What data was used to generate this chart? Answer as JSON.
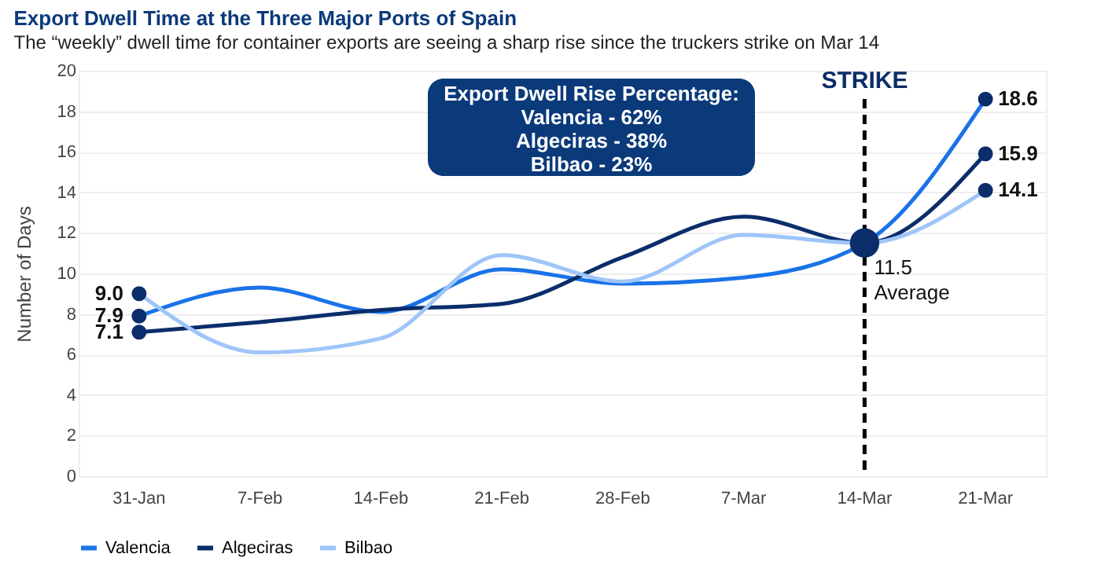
{
  "chart_data": {
    "type": "line",
    "title": "Export Dwell Time at the Three Major Ports of Spain",
    "subtitle": "The “weekly” dwell time for container exports are seeing a sharp rise since the truckers strike on Mar 14",
    "ylabel": "Number of Days",
    "categories": [
      "31-Jan",
      "7-Feb",
      "14-Feb",
      "21-Feb",
      "28-Feb",
      "7-Mar",
      "14-Mar",
      "21-Mar"
    ],
    "series": [
      {
        "name": "Valencia",
        "color": "#1a73e8",
        "values": [
          7.9,
          9.3,
          8.1,
          10.2,
          9.5,
          9.8,
          11.5,
          18.6
        ],
        "value_labels": [
          "7.9",
          null,
          null,
          null,
          null,
          null,
          null,
          "18.6"
        ]
      },
      {
        "name": "Algeciras",
        "color": "#0b2d6b",
        "values": [
          7.1,
          7.6,
          8.2,
          8.5,
          10.8,
          12.8,
          11.5,
          15.9
        ],
        "value_labels": [
          "7.1",
          null,
          null,
          null,
          null,
          null,
          null,
          "15.9"
        ]
      },
      {
        "name": "Bilbao",
        "color": "#9fc5f8",
        "values": [
          9.0,
          6.1,
          6.8,
          10.9,
          9.6,
          11.9,
          11.5,
          14.1
        ],
        "value_labels": [
          "9.0",
          null,
          null,
          null,
          null,
          null,
          null,
          "14.1"
        ]
      }
    ],
    "ylim": [
      0,
      20
    ],
    "yticks": [
      0,
      2,
      4,
      6,
      8,
      10,
      12,
      14,
      16,
      18,
      20
    ],
    "grid": "y",
    "legend": "bottom left",
    "line_style": "solid",
    "ref_lines": [
      {
        "axis": "x",
        "value": "14-Mar",
        "label": "STRIKE",
        "color": "#000000",
        "line_style": "dashed"
      }
    ],
    "annotations": [
      "Export Dwell Rise Percentage:\nValencia - 62%\nAlgeciras - 38%\nBilbao - 23%",
      {
        "text": "11.5\nAverage",
        "x": "14-Mar",
        "y": 11.5
      }
    ]
  }
}
